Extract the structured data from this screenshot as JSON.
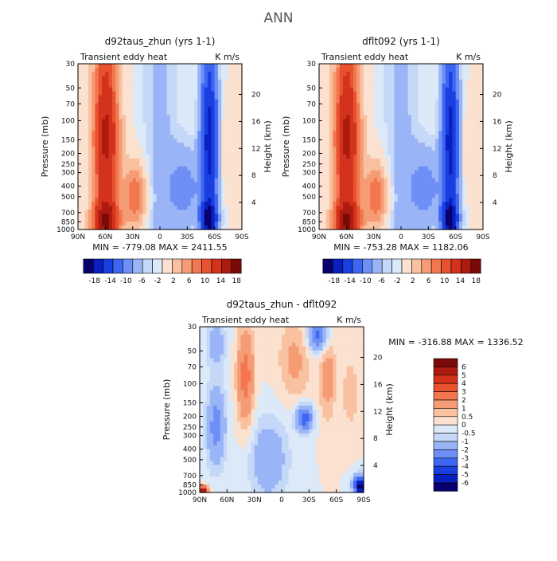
{
  "figure_title": "ANN",
  "chart_data": [
    {
      "type": "heatmap",
      "title": "d92taus_zhun (yrs 1-1)",
      "left_subtitle": "Transient eddy heat",
      "right_subtitle": "K m/s",
      "xlabel": "",
      "ylabel": "Pressure (mb)",
      "ylabel_right": "Height (km)",
      "x_tick_labels": [
        "90N",
        "60N",
        "30N",
        "0",
        "30S",
        "60S",
        "90S"
      ],
      "y_tick_labels": [
        "30",
        "50",
        "70",
        "100",
        "150",
        "200",
        "250",
        "300",
        "400",
        "500",
        "700",
        "850",
        "1000"
      ],
      "y_right_tick_labels": [
        "20",
        "16",
        "12",
        "8",
        "4"
      ],
      "xlim": [
        90,
        -90
      ],
      "ylim": [
        1000,
        30
      ],
      "stats_text": "MIN = -779.08   MAX = 2411.55",
      "colorbar_labels": [
        "-18",
        "-14",
        "-10",
        "-6",
        "-2",
        "2",
        "6",
        "10",
        "14",
        "18"
      ],
      "colorbar_orientation": "horizontal"
    },
    {
      "type": "heatmap",
      "title": "dflt092 (yrs 1-1)",
      "left_subtitle": "Transient eddy heat",
      "right_subtitle": "K m/s",
      "xlabel": "",
      "ylabel": "Pressure (mb)",
      "ylabel_right": "Height (km)",
      "x_tick_labels": [
        "90N",
        "60N",
        "30N",
        "0",
        "30S",
        "60S",
        "90S"
      ],
      "y_tick_labels": [
        "30",
        "50",
        "70",
        "100",
        "150",
        "200",
        "250",
        "300",
        "400",
        "500",
        "700",
        "850",
        "1000"
      ],
      "y_right_tick_labels": [
        "20",
        "16",
        "12",
        "8",
        "4"
      ],
      "xlim": [
        90,
        -90
      ],
      "ylim": [
        1000,
        30
      ],
      "stats_text": "MIN = -753.28   MAX = 1182.06",
      "colorbar_labels": [
        "-18",
        "-14",
        "-10",
        "-6",
        "-2",
        "2",
        "6",
        "10",
        "14",
        "18"
      ],
      "colorbar_orientation": "horizontal"
    },
    {
      "type": "heatmap",
      "title": "d92taus_zhun - dflt092",
      "left_subtitle": "Transient eddy heat",
      "right_subtitle": "K m/s",
      "xlabel": "",
      "ylabel": "Pressure (mb)",
      "ylabel_right": "Height (km)",
      "x_tick_labels": [
        "90N",
        "60N",
        "30N",
        "0",
        "30S",
        "60S",
        "90S"
      ],
      "y_tick_labels": [
        "30",
        "50",
        "70",
        "100",
        "150",
        "200",
        "250",
        "300",
        "400",
        "500",
        "700",
        "850",
        "1000"
      ],
      "y_right_tick_labels": [
        "20",
        "16",
        "12",
        "8",
        "4"
      ],
      "xlim": [
        90,
        -90
      ],
      "ylim": [
        1000,
        30
      ],
      "stats_text": "MIN = -316.88   MAX = 1336.52",
      "colorbar_labels": [
        "6",
        "5",
        "4",
        "3",
        "2",
        "1",
        "0.5",
        "0",
        "-0.5",
        "-1",
        "-2",
        "-3",
        "-4",
        "-5",
        "-6"
      ],
      "colorbar_orientation": "vertical"
    }
  ],
  "colormap_blue_to_red": [
    "#08006e",
    "#0a1fc0",
    "#1a3fe0",
    "#3d66f2",
    "#6d8ff6",
    "#9ab5f7",
    "#c6d8f7",
    "#dce9f8",
    "#fbe1cf",
    "#f9c1a0",
    "#f59c74",
    "#f27750",
    "#e8522f",
    "#d3321c",
    "#ad1b10",
    "#7a0a08"
  ]
}
